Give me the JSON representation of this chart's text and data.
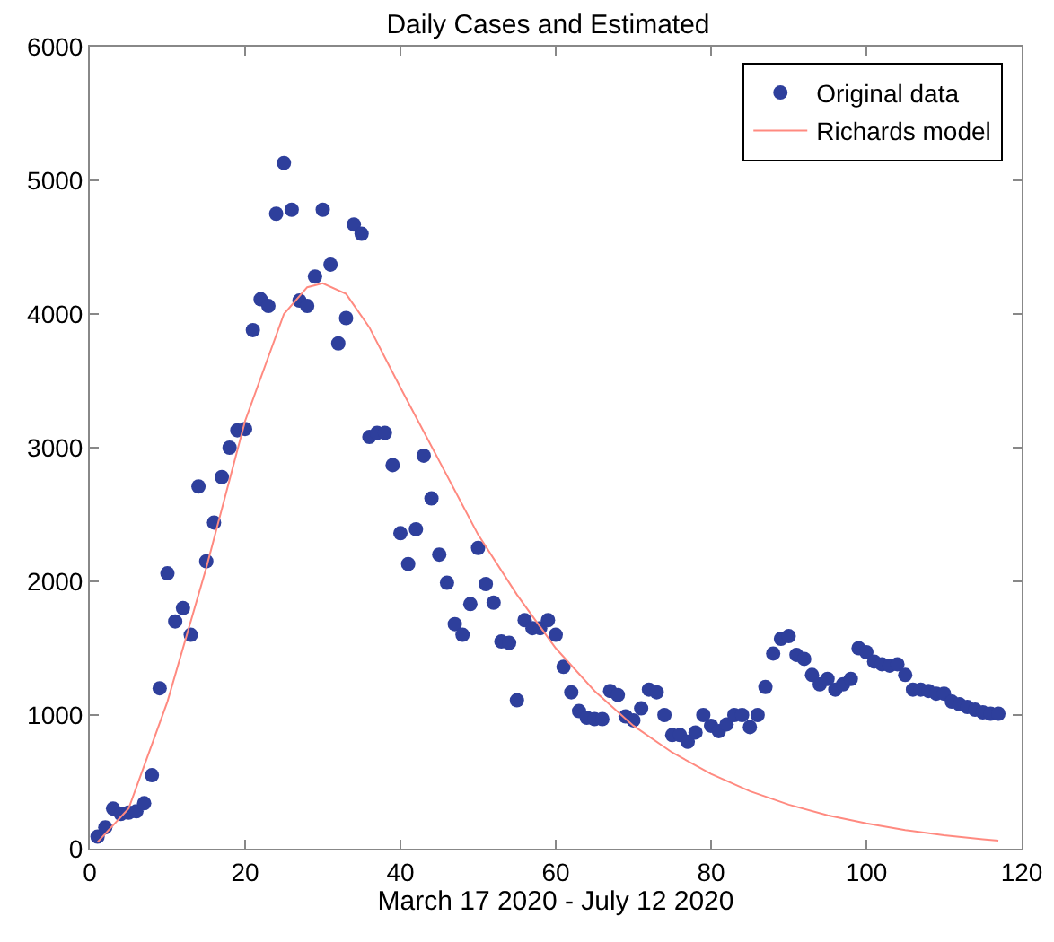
{
  "chart_data": {
    "type": "scatter",
    "title": "Daily Cases and Estimated",
    "xlabel": "March 17 2020 - July 12 2020",
    "xlim": [
      0,
      120
    ],
    "xticks": [
      0,
      20,
      40,
      60,
      80,
      100,
      120
    ],
    "ylim": [
      0,
      6000
    ],
    "yticks": [
      0,
      1000,
      2000,
      3000,
      4000,
      5000,
      6000
    ],
    "grid": false,
    "legend": "top right",
    "series": [
      {
        "name": "Original data",
        "type": "scatter",
        "marker": "circle",
        "color": "#2e3f9c",
        "x": [
          1,
          2,
          3,
          4,
          5,
          6,
          7,
          8,
          9,
          10,
          11,
          12,
          13,
          14,
          15,
          16,
          17,
          18,
          19,
          20,
          21,
          22,
          23,
          24,
          25,
          26,
          27,
          28,
          29,
          30,
          31,
          32,
          33,
          34,
          35,
          36,
          37,
          38,
          39,
          40,
          41,
          42,
          43,
          44,
          45,
          46,
          47,
          48,
          49,
          50,
          51,
          52,
          53,
          54,
          55,
          56,
          57,
          58,
          59,
          60,
          61,
          62,
          63,
          64,
          65,
          66,
          67,
          68,
          69,
          70,
          71,
          72,
          73,
          74,
          75,
          76,
          77,
          78,
          79,
          80,
          81,
          82,
          83,
          84,
          85,
          86,
          87,
          88,
          89,
          90,
          91,
          92,
          93,
          94,
          95,
          96,
          97,
          98,
          99,
          100,
          101,
          102,
          103,
          104,
          105,
          106,
          107,
          108,
          109,
          110,
          111,
          112,
          113,
          114,
          115,
          116,
          117
        ],
        "values": [
          90,
          160,
          300,
          260,
          270,
          280,
          340,
          550,
          1200,
          2060,
          1700,
          1800,
          1600,
          2710,
          2150,
          2440,
          2780,
          3000,
          3130,
          3140,
          3880,
          4110,
          4060,
          4750,
          5130,
          4780,
          4100,
          4060,
          4280,
          4780,
          4370,
          3780,
          3970,
          4670,
          4600,
          3080,
          3110,
          3110,
          2870,
          2360,
          2130,
          2390,
          2940,
          2620,
          2200,
          1990,
          1680,
          1600,
          1830,
          2250,
          1980,
          1840,
          1550,
          1540,
          1110,
          1710,
          1650,
          1650,
          1710,
          1600,
          1360,
          1170,
          1030,
          980,
          970,
          970,
          1180,
          1150,
          990,
          960,
          1050,
          1190,
          1170,
          1000,
          850,
          850,
          800,
          870,
          1000,
          920,
          880,
          930,
          1000,
          1000,
          910,
          1000,
          1210,
          1460,
          1570,
          1590,
          1450,
          1420,
          1300,
          1230,
          1270,
          1190,
          1230,
          1270,
          1500,
          1470,
          1400,
          1380,
          1370,
          1380,
          1300,
          1190,
          1190,
          1180,
          1160,
          1160,
          1100,
          1080,
          1060,
          1040,
          1020,
          1010,
          1010
        ]
      },
      {
        "name": "Richards model",
        "type": "line",
        "marker": "none",
        "line_style": "solid",
        "color": "#ff8a80",
        "x": [
          1,
          5,
          10,
          15,
          20,
          25,
          28,
          30,
          33,
          36,
          40,
          45,
          50,
          55,
          60,
          65,
          70,
          75,
          80,
          85,
          90,
          95,
          100,
          105,
          110,
          115,
          117
        ],
        "values": [
          50,
          300,
          1100,
          2100,
          3200,
          4000,
          4200,
          4230,
          4150,
          3900,
          3450,
          2900,
          2350,
          1900,
          1500,
          1180,
          920,
          720,
          560,
          430,
          330,
          250,
          190,
          140,
          100,
          70,
          60
        ]
      }
    ]
  }
}
